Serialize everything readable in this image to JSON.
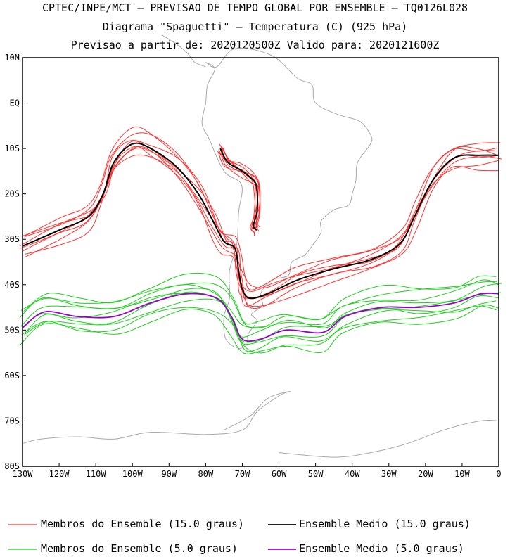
{
  "header": {
    "line1": "CPTEC/INPE/MCT – PREVISAO DE TEMPO GLOBAL POR ENSEMBLE – TQ0126L028",
    "line2": "Diagrama \"Spaguetti\" – Temperatura (C) (925 hPa)",
    "line3": "Previsao a partir de: 2020120500Z  Valido para: 2020121600Z"
  },
  "axes": {
    "lat_labels": [
      "10N",
      "EQ",
      "10S",
      "20S",
      "30S",
      "40S",
      "50S",
      "60S",
      "70S",
      "80S"
    ],
    "lon_labels": [
      "130W",
      "120W",
      "110W",
      "100W",
      "90W",
      "80W",
      "70W",
      "60W",
      "50W",
      "40W",
      "30W",
      "20W",
      "10W",
      "0"
    ]
  },
  "map_region": {
    "lon_range": [
      -130,
      0
    ],
    "lat_range": [
      -80,
      10
    ]
  },
  "colors": {
    "members_15": "#ff3333",
    "mean_15": "#000000",
    "members_5": "#22cc22",
    "mean_5": "#9900cc",
    "land": "#aaaaaa"
  },
  "legend": {
    "members_15": "Membros do Ensemble (15.0 graus)",
    "mean_15": "Ensemble Medio (15.0 graus)",
    "members_5": "Membros do Ensemble (5.0 graus)",
    "mean_5": "Ensemble Medio (5.0 graus)"
  },
  "isotherm_data": {
    "mean_15": [
      [
        -130,
        -31.5
      ],
      [
        -120,
        -28
      ],
      [
        -112,
        -25
      ],
      [
        -108,
        -20
      ],
      [
        -105,
        -13
      ],
      [
        -100,
        -9
      ],
      [
        -95,
        -10
      ],
      [
        -88,
        -14
      ],
      [
        -82,
        -20
      ],
      [
        -78,
        -26
      ],
      [
        -75,
        -30.5
      ],
      [
        -72,
        -32
      ],
      [
        -71,
        -37
      ],
      [
        -70,
        -41
      ],
      [
        -68,
        -43
      ],
      [
        -63,
        -42
      ],
      [
        -55,
        -39
      ],
      [
        -45,
        -36.5
      ],
      [
        -35,
        -34.5
      ],
      [
        -27,
        -31
      ],
      [
        -23,
        -25
      ],
      [
        -18,
        -17
      ],
      [
        -12,
        -12
      ],
      [
        -5,
        -11.5
      ],
      [
        0,
        -11.5
      ]
    ],
    "mean_15_andes": [
      [
        -76,
        -10
      ],
      [
        -74,
        -13
      ],
      [
        -70,
        -15
      ],
      [
        -67,
        -17
      ],
      [
        -66,
        -19
      ],
      [
        -66,
        -24
      ],
      [
        -67,
        -27
      ],
      [
        -66,
        -28
      ]
    ],
    "mean_5": [
      [
        -130,
        -49.5
      ],
      [
        -124,
        -46
      ],
      [
        -115,
        -47
      ],
      [
        -105,
        -47
      ],
      [
        -95,
        -44
      ],
      [
        -85,
        -42
      ],
      [
        -77,
        -43
      ],
      [
        -73,
        -47
      ],
      [
        -70,
        -52
      ],
      [
        -65,
        -52
      ],
      [
        -58,
        -50
      ],
      [
        -48,
        -50.5
      ],
      [
        -42,
        -47
      ],
      [
        -32,
        -45
      ],
      [
        -22,
        -45
      ],
      [
        -12,
        -44
      ],
      [
        -5,
        -42
      ],
      [
        0,
        -42
      ]
    ],
    "members_15_offsets": [
      -2.5,
      -1.6,
      -0.9,
      -0.3,
      0.4,
      1.1,
      1.9,
      2.6
    ],
    "members_5_offsets": [
      -3.5,
      -2.6,
      -1.6,
      -0.7,
      0.3,
      1.2,
      2.1,
      3.0,
      3.8
    ]
  }
}
